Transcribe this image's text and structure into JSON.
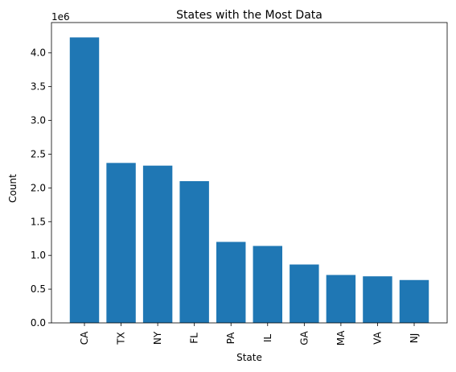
{
  "chart_data": {
    "type": "bar",
    "title": "States with the Most Data",
    "xlabel": "State",
    "ylabel": "Count",
    "y_offset_text": "1e6",
    "y_multiplier": 1000000,
    "categories": [
      "CA",
      "TX",
      "NY",
      "FL",
      "PA",
      "IL",
      "GA",
      "MA",
      "VA",
      "NJ"
    ],
    "values": [
      4230000,
      2370000,
      2330000,
      2100000,
      1200000,
      1140000,
      865000,
      710000,
      690000,
      635000
    ],
    "ylim": [
      0,
      4450000
    ],
    "yticks": [
      0,
      500000,
      1000000,
      1500000,
      2000000,
      2500000,
      3000000,
      3500000,
      4000000
    ],
    "ytick_labels": [
      "0.0",
      "0.5",
      "1.0",
      "1.5",
      "2.0",
      "2.5",
      "3.0",
      "3.5",
      "4.0"
    ],
    "bar_color": "#1f77b4",
    "grid": false,
    "legend": "none"
  }
}
